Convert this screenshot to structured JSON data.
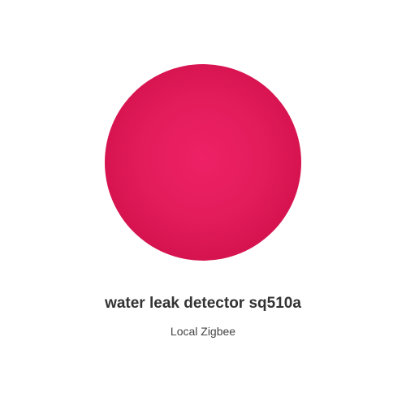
{
  "device": {
    "name": "water leak detector sq510a",
    "integration": "Local Zigbee",
    "image_icon": "water-leak-detector-icon",
    "image_color": "#e21b5a"
  }
}
